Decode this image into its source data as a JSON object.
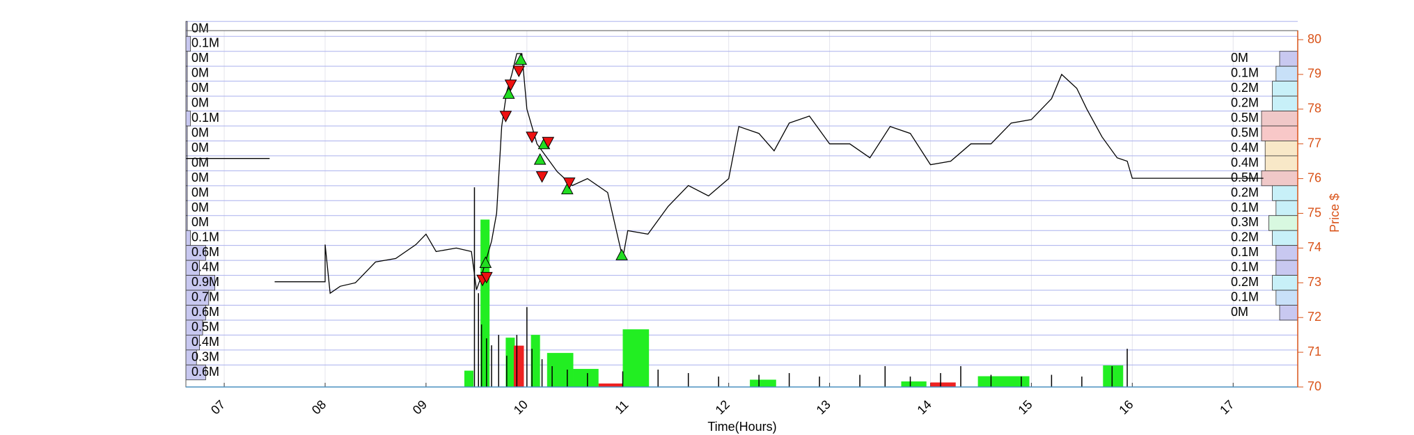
{
  "chart_data": {
    "type": "price-volume",
    "xlabel": "Time(Hours)",
    "ylabel": "Price $",
    "xlim": [
      6.62,
      17.64
    ],
    "xticks": [
      {
        "value": 7,
        "label": "07"
      },
      {
        "value": 8,
        "label": "08"
      },
      {
        "value": 9,
        "label": "09"
      },
      {
        "value": 10,
        "label": "10"
      },
      {
        "value": 11,
        "label": "11"
      },
      {
        "value": 12,
        "label": "12"
      },
      {
        "value": 13,
        "label": "13"
      },
      {
        "value": 14,
        "label": "14"
      },
      {
        "value": 15,
        "label": "15"
      },
      {
        "value": 16,
        "label": "16"
      },
      {
        "value": 17,
        "label": "17"
      }
    ],
    "ylim": [
      70,
      80
    ],
    "yticks": [
      70,
      71,
      72,
      73,
      74,
      75,
      76,
      77,
      78,
      79,
      80
    ],
    "axis_color": "#d95319",
    "grid": true,
    "price": {
      "color": "#000000",
      "x": [
        6.62,
        7.45,
        null,
        7.5,
        8.0,
        8.0,
        8.05,
        8.15,
        8.3,
        8.5,
        8.7,
        8.9,
        9.0,
        9.1,
        9.3,
        9.45,
        9.5,
        9.55,
        9.65,
        9.7,
        9.75,
        9.8,
        9.85,
        9.9,
        9.95,
        10.0,
        10.1,
        10.2,
        10.3,
        10.45,
        10.6,
        10.8,
        10.95,
        11.0,
        11.2,
        11.4,
        11.6,
        11.8,
        12.0,
        12.1,
        12.3,
        12.45,
        12.6,
        12.8,
        13.0,
        13.2,
        13.4,
        13.6,
        13.8,
        14.0,
        14.2,
        14.4,
        14.6,
        14.8,
        15.0,
        15.2,
        15.3,
        15.45,
        15.55,
        15.7,
        15.85,
        15.95,
        16.0,
        17.3
      ],
      "values": [
        76.58,
        76.58,
        null,
        73.03,
        73.03,
        74.1,
        72.7,
        72.9,
        73.0,
        73.6,
        73.7,
        74.1,
        74.4,
        73.9,
        74.0,
        73.9,
        72.8,
        73.2,
        74.2,
        75.0,
        77.5,
        78.5,
        79.0,
        79.6,
        79.6,
        78.0,
        77.0,
        76.6,
        76.2,
        75.8,
        76.0,
        75.6,
        73.7,
        74.5,
        74.4,
        75.2,
        75.8,
        75.5,
        76.0,
        77.5,
        77.3,
        76.8,
        77.6,
        77.8,
        77.0,
        77.0,
        76.6,
        77.5,
        77.3,
        76.4,
        76.5,
        77.0,
        77.0,
        77.6,
        77.7,
        78.3,
        79.0,
        78.6,
        78.0,
        77.2,
        76.6,
        76.5,
        76.01,
        76.01
      ]
    },
    "buys": {
      "color": "#22dd22",
      "x": [
        9.59,
        9.82,
        9.94,
        10.13,
        10.17,
        10.4,
        10.94
      ],
      "values": [
        73.58,
        78.45,
        79.43,
        76.55,
        77.0,
        75.7,
        73.8
      ]
    },
    "sells": {
      "color": "#ee1111",
      "x": [
        9.56,
        9.6,
        9.79,
        9.84,
        9.92,
        10.05,
        10.15,
        10.21,
        10.42
      ],
      "values": [
        73.08,
        73.16,
        77.8,
        78.7,
        79.1,
        77.2,
        76.06,
        77.05,
        75.88
      ]
    },
    "volume_lim": [
      0,
      1000
    ],
    "volume": {
      "x0": [
        9.38,
        9.54,
        9.79,
        9.87,
        10.04,
        10.2,
        10.46,
        10.71,
        10.95,
        12.21,
        13.71,
        14.0,
        14.47,
        15.71
      ],
      "x1": [
        9.47,
        9.63,
        9.88,
        9.97,
        10.13,
        10.46,
        10.71,
        10.95,
        11.21,
        12.47,
        13.96,
        14.25,
        14.98,
        15.91
      ],
      "values": [
        47,
        482,
        142,
        119,
        150,
        98,
        52,
        10,
        166,
        21,
        16,
        13,
        31,
        62
      ],
      "colors": [
        "#22ee22",
        "#22ee22",
        "#22ee22",
        "#ee2222",
        "#22ee22",
        "#22ee22",
        "#22ee22",
        "#ee2222",
        "#22ee22",
        "#22ee22",
        "#22ee22",
        "#ee2222",
        "#22ee22",
        "#22ee22"
      ]
    },
    "trade_volume": {
      "color": "#000000",
      "x": [
        9.48,
        9.52,
        9.55,
        9.6,
        9.65,
        9.72,
        9.8,
        9.9,
        10.0,
        10.05,
        10.15,
        10.25,
        10.4,
        10.6,
        10.95,
        11.3,
        11.6,
        11.9,
        12.3,
        12.6,
        12.9,
        13.3,
        13.55,
        13.8,
        14.1,
        14.3,
        14.6,
        14.9,
        15.2,
        15.5,
        15.8,
        15.95
      ],
      "values": [
        575,
        270,
        180,
        140,
        120,
        150,
        90,
        150,
        230,
        110,
        80,
        60,
        50,
        40,
        45,
        50,
        40,
        30,
        35,
        40,
        30,
        35,
        60,
        30,
        40,
        60,
        35,
        30,
        35,
        30,
        60,
        110
      ]
    },
    "left_profile": {
      "color": "#c8c8f0",
      "levels": [
        80.31,
        79.88,
        79.45,
        79.02,
        78.59,
        78.16,
        77.73,
        77.3,
        76.87,
        76.44,
        76.01,
        75.58,
        75.15,
        74.72,
        74.29,
        73.86,
        73.43,
        73.0,
        72.57,
        72.14,
        71.71,
        71.28,
        70.85,
        70.42
      ],
      "values": [
        0,
        0.1,
        0,
        0,
        0,
        0,
        0.1,
        0,
        0,
        0,
        0,
        0,
        0,
        0,
        0.1,
        0.6,
        0.4,
        0.9,
        0.7,
        0.6,
        0.5,
        0.4,
        0.3,
        0.6
      ],
      "value_labels": [
        "0M",
        "0.1M",
        "0M",
        "0M",
        "0M",
        "0M",
        "0.1M",
        "0M",
        "0M",
        "0M",
        "0M",
        "0M",
        "0M",
        "0M",
        "0.1M",
        "0.6M",
        "0.4M",
        "0.9M",
        "0.7M",
        "0.6M",
        "0.5M",
        "0.4M",
        "0.3M",
        "0.6M"
      ]
    },
    "right_profile": {
      "levels": [
        79.45,
        79.02,
        78.59,
        78.16,
        77.73,
        77.3,
        76.87,
        76.44,
        76.01,
        75.58,
        75.15,
        74.72,
        74.29,
        73.86,
        73.43,
        73.0,
        72.57,
        72.14
      ],
      "values": [
        0,
        0.1,
        0.2,
        0.2,
        0.5,
        0.5,
        0.4,
        0.4,
        0.5,
        0.2,
        0.1,
        0.3,
        0.2,
        0.1,
        0.1,
        0.2,
        0.1,
        0
      ],
      "value_labels": [
        "0M",
        "0.1M",
        "0.2M",
        "0.2M",
        "0.5M",
        "0.5M",
        "0.4M",
        "0.4M",
        "0.5M",
        "0.2M",
        "0.1M",
        "0.3M",
        "0.2M",
        "0.1M",
        "0.1M",
        "0.2M",
        "0.1M",
        "0M"
      ],
      "colors": [
        "#c8c8f0",
        "#c8e0f8",
        "#c8f0f8",
        "#c8f0f8",
        "#f0c8c8",
        "#f8c8c8",
        "#f8e8c8",
        "#f8e8c8",
        "#f0c8c8",
        "#c8f0f8",
        "#c8f0f8",
        "#d8f8e0",
        "#c8f0f8",
        "#c8c8f0",
        "#c8c8f0",
        "#c8f0f8",
        "#c8e0f8",
        "#c8c8f0"
      ]
    }
  }
}
